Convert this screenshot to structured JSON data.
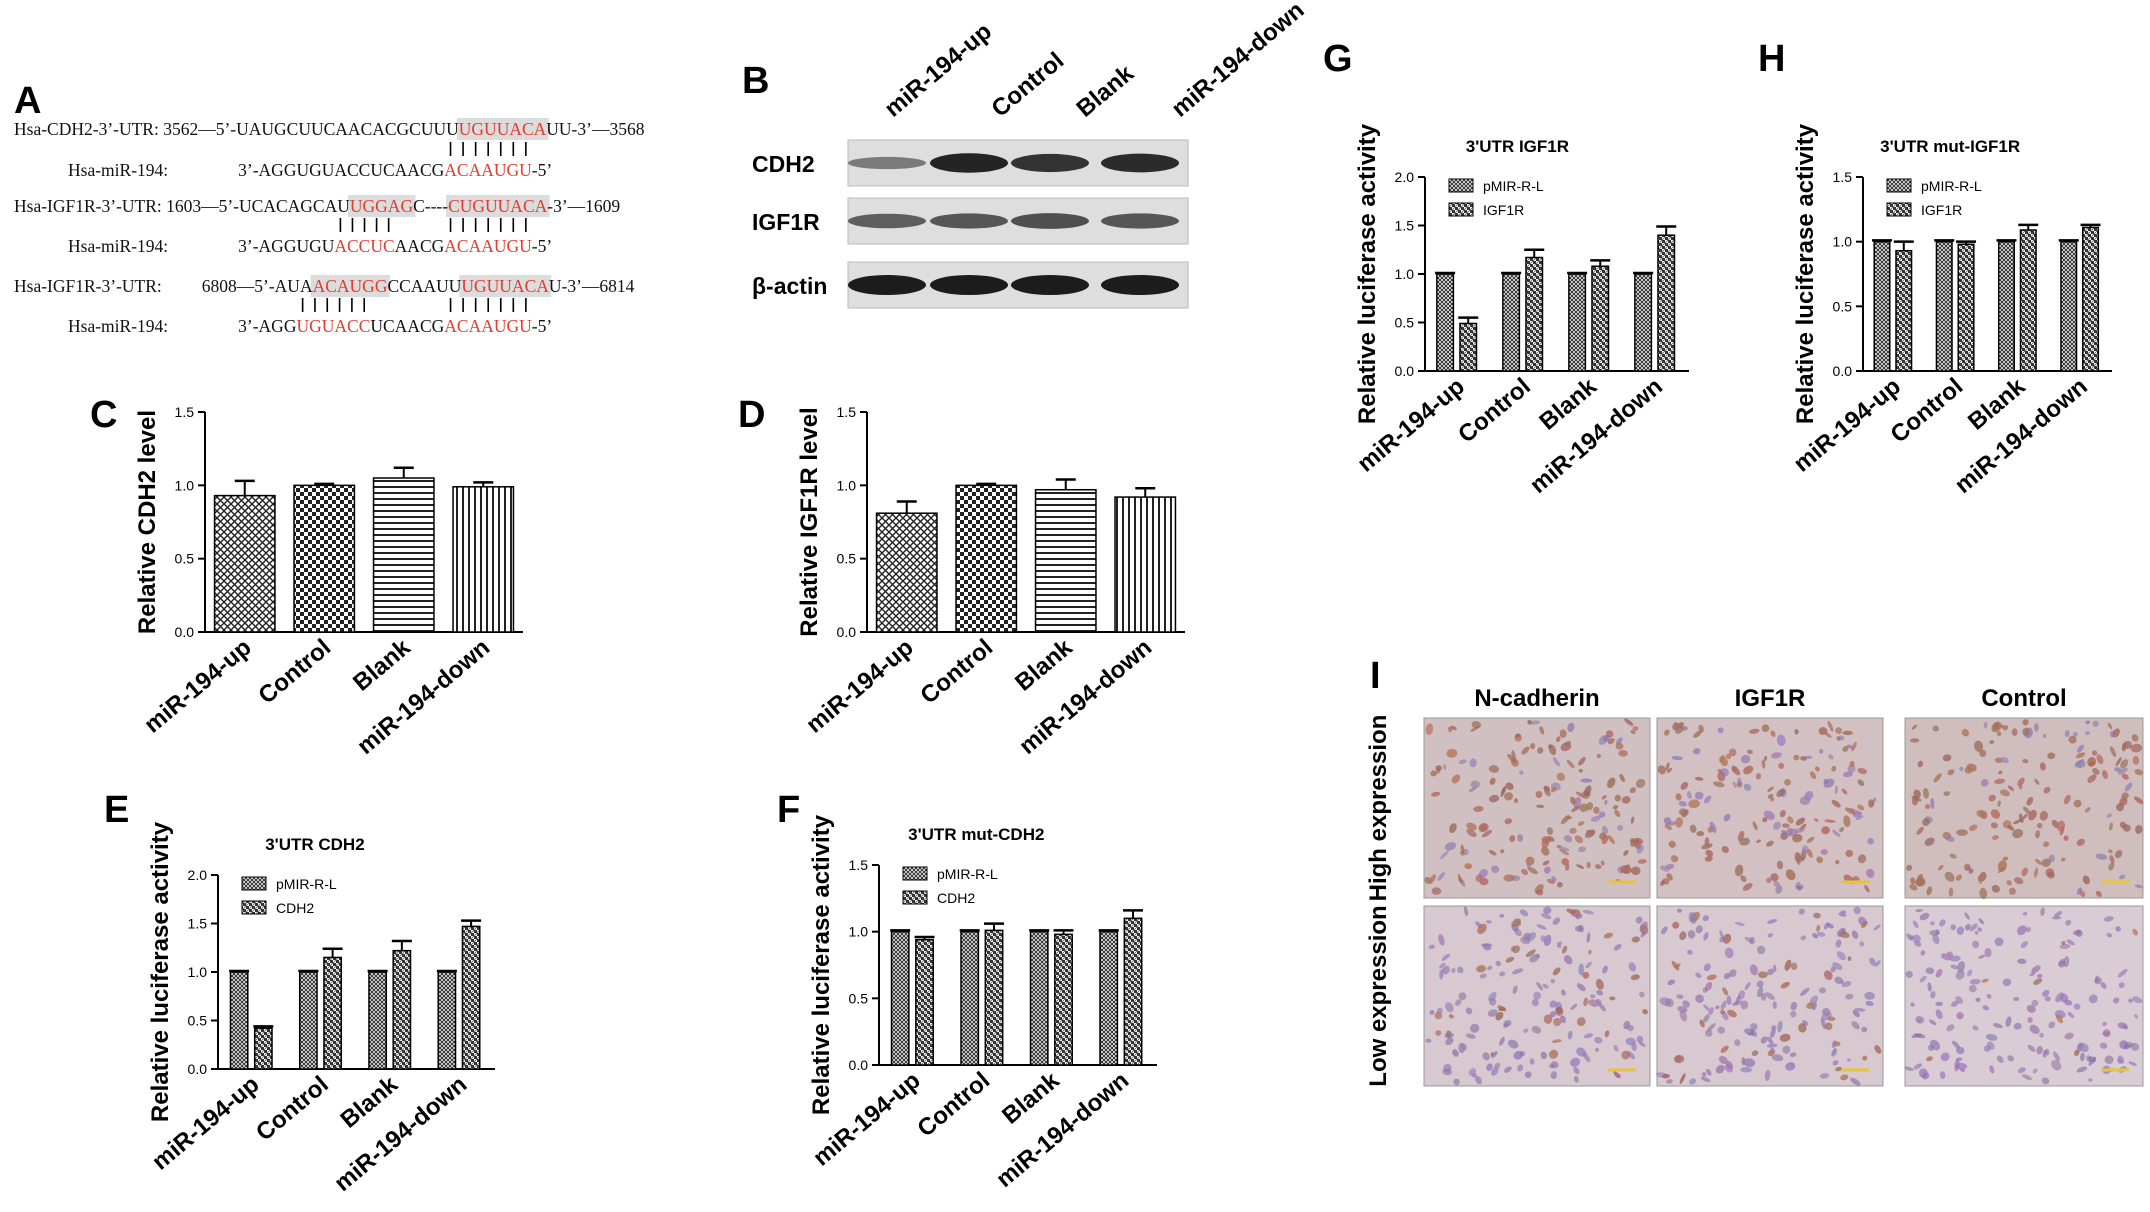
{
  "colors": {
    "highlight": "#dcdcdc",
    "red": "#e23b2f",
    "ink": "#111111",
    "blot": "#1c1c1c",
    "blot_bg": "#dedede",
    "tissue_bg": "#d9cdd6"
  },
  "panel_labels": {
    "a": "A",
    "b": "B",
    "c": "C",
    "d": "D",
    "e": "E",
    "f": "F",
    "g": "G",
    "h": "H",
    "i": "I"
  },
  "panel_a": {
    "rows": [
      {
        "segments": [
          {
            "t": "Hsa-CDH2-3’-UTR: 3562—5’-UAUGCUUCAACACGCUUU",
            "c": "ink"
          },
          {
            "t": "UGUUACA",
            "c": "red"
          },
          {
            "t": "UU-3’—3568",
            "c": "ink"
          }
        ]
      },
      {
        "segments": [
          {
            "t": "Hsa-miR-194:",
            "c": "ink"
          },
          {
            "t": "3’-AGGUGUACCUCAACG",
            "c": "ink"
          },
          {
            "t": "ACAAUGU",
            "c": "red"
          },
          {
            "t": "-5’",
            "c": "ink"
          }
        ]
      },
      {
        "segments": [
          {
            "t": "Hsa-IGF1R-3’-UTR: 1603—5’-UCACAGCAU",
            "c": "ink"
          },
          {
            "t": "UGGAG",
            "c": "red"
          },
          {
            "t": "C----",
            "c": "ink"
          },
          {
            "t": "CUGUUACA",
            "c": "red"
          },
          {
            "t": "-3’—1609",
            "c": "ink"
          }
        ]
      },
      {
        "segments": [
          {
            "t": "Hsa-miR-194:",
            "c": "ink"
          },
          {
            "t": "3’-AGGUGU",
            "c": "ink"
          },
          {
            "t": "ACCUC",
            "c": "red"
          },
          {
            "t": "AACG",
            "c": "ink"
          },
          {
            "t": "ACAAUGU",
            "c": "red"
          },
          {
            "t": "-5’",
            "c": "ink"
          }
        ]
      },
      {
        "segments": [
          {
            "t": "Hsa-IGF1R-3’-UTR:",
            "c": "ink"
          },
          {
            "t": "6808—5’-AUA",
            "c": "ink"
          },
          {
            "t": "ACAUGG",
            "c": "red"
          },
          {
            "t": "CCAAUU",
            "c": "ink"
          },
          {
            "t": "UGUUACA",
            "c": "red"
          },
          {
            "t": "U-3’—6814",
            "c": "ink"
          }
        ]
      },
      {
        "segments": [
          {
            "t": "Hsa-miR-194:",
            "c": "ink"
          },
          {
            "t": "3’-AGG",
            "c": "ink"
          },
          {
            "t": "UGUACC",
            "c": "red"
          },
          {
            "t": "UCAACG",
            "c": "ink"
          },
          {
            "t": "ACAAUGU",
            "c": "red"
          },
          {
            "t": "-5’",
            "c": "ink"
          }
        ]
      }
    ]
  },
  "panel_b": {
    "lanes": [
      "miR-194-up",
      "Control",
      "Blank",
      "miR-194-down"
    ],
    "blots": [
      {
        "label": "CDH2",
        "intensity": [
          0.35,
          0.95,
          0.85,
          0.9
        ]
      },
      {
        "label": "IGF1R",
        "intensity": [
          0.55,
          0.6,
          0.65,
          0.6
        ]
      },
      {
        "label": "β-actin",
        "intensity": [
          1.0,
          1.0,
          1.0,
          1.0
        ]
      }
    ]
  },
  "chart_data": [
    {
      "id": "C",
      "type": "bar",
      "title": "",
      "ylabel": "Relative CDH2 level",
      "categories": [
        "miR-194-up",
        "Control",
        "Blank",
        "miR-194-down"
      ],
      "values": [
        0.93,
        1.0,
        1.05,
        0.99
      ],
      "errors": [
        0.1,
        0.01,
        0.07,
        0.03
      ],
      "ylim": [
        0,
        1.5
      ],
      "yticks": [
        "0.0",
        "0.5",
        "1.0",
        "1.5"
      ],
      "patterns": [
        "cross",
        "checker",
        "hline",
        "vline"
      ]
    },
    {
      "id": "D",
      "type": "bar",
      "title": "",
      "ylabel": "Relative IGF1R level",
      "categories": [
        "miR-194-up",
        "Control",
        "Blank",
        "miR-194-down"
      ],
      "values": [
        0.81,
        1.0,
        0.97,
        0.92
      ],
      "errors": [
        0.08,
        0.01,
        0.07,
        0.06
      ],
      "ylim": [
        0,
        1.5
      ],
      "yticks": [
        "0.0",
        "0.5",
        "1.0",
        "1.5"
      ],
      "patterns": [
        "cross",
        "checker",
        "hline",
        "vline"
      ]
    },
    {
      "id": "E",
      "type": "bar",
      "title": "3'UTR CDH2",
      "ylabel": "Relative luciferase activity",
      "categories": [
        "miR-194-up",
        "Control",
        "Blank",
        "miR-194-down"
      ],
      "series": [
        {
          "name": "pMIR-R-L",
          "values": [
            1.0,
            1.0,
            1.0,
            1.0
          ],
          "errors": [
            0.01,
            0.01,
            0.01,
            0.01
          ]
        },
        {
          "name": "CDH2",
          "values": [
            0.42,
            1.15,
            1.22,
            1.47
          ],
          "errors": [
            0.02,
            0.09,
            0.1,
            0.06
          ]
        }
      ],
      "ylim": [
        0,
        2.0
      ],
      "yticks": [
        "0.0",
        "0.5",
        "1.0",
        "1.5",
        "2.0"
      ],
      "legend": "top-left"
    },
    {
      "id": "F",
      "type": "bar",
      "title": "3'UTR mut-CDH2",
      "ylabel": "Relative luciferase activity",
      "categories": [
        "miR-194-up",
        "Control",
        "Blank",
        "miR-194-down"
      ],
      "series": [
        {
          "name": "pMIR-R-L",
          "values": [
            1.0,
            1.0,
            1.0,
            1.0
          ],
          "errors": [
            0.01,
            0.01,
            0.01,
            0.01
          ]
        },
        {
          "name": "CDH2",
          "values": [
            0.94,
            1.01,
            0.98,
            1.1
          ],
          "errors": [
            0.02,
            0.05,
            0.03,
            0.06
          ]
        }
      ],
      "ylim": [
        0,
        1.5
      ],
      "yticks": [
        "0.0",
        "0.5",
        "1.0",
        "1.5"
      ],
      "legend": "top-left"
    },
    {
      "id": "G",
      "type": "bar",
      "title": "3'UTR IGF1R",
      "ylabel": "Relative luciferase activity",
      "categories": [
        "miR-194-up",
        "Control",
        "Blank",
        "miR-194-down"
      ],
      "series": [
        {
          "name": "pMIR-R-L",
          "values": [
            1.0,
            1.0,
            1.0,
            1.0
          ],
          "errors": [
            0.01,
            0.01,
            0.01,
            0.01
          ]
        },
        {
          "name": "IGF1R",
          "values": [
            0.49,
            1.17,
            1.08,
            1.4
          ],
          "errors": [
            0.06,
            0.08,
            0.06,
            0.09
          ]
        }
      ],
      "ylim": [
        0,
        2.0
      ],
      "yticks": [
        "0.0",
        "0.5",
        "1.0",
        "1.5",
        "2.0"
      ],
      "legend": "top-left"
    },
    {
      "id": "H",
      "type": "bar",
      "title": "3'UTR mut-IGF1R",
      "ylabel": "Relative luciferase activity",
      "categories": [
        "miR-194-up",
        "Control",
        "Blank",
        "miR-194-down"
      ],
      "series": [
        {
          "name": "pMIR-R-L",
          "values": [
            1.0,
            1.0,
            1.0,
            1.0
          ],
          "errors": [
            0.01,
            0.01,
            0.01,
            0.01
          ]
        },
        {
          "name": "IGF1R",
          "values": [
            0.93,
            0.98,
            1.09,
            1.11
          ],
          "errors": [
            0.07,
            0.02,
            0.04,
            0.02
          ]
        }
      ],
      "ylim": [
        0,
        1.5
      ],
      "yticks": [
        "0.0",
        "0.5",
        "1.0",
        "1.5"
      ],
      "legend": "top-left"
    }
  ],
  "panel_i": {
    "columns": [
      "N-cadherin",
      "IGF1R",
      "Control"
    ],
    "rows": [
      "High expression",
      "Low expression"
    ],
    "stain": [
      [
        0.75,
        0.7,
        0.85
      ],
      [
        0.25,
        0.2,
        0.05
      ]
    ]
  }
}
